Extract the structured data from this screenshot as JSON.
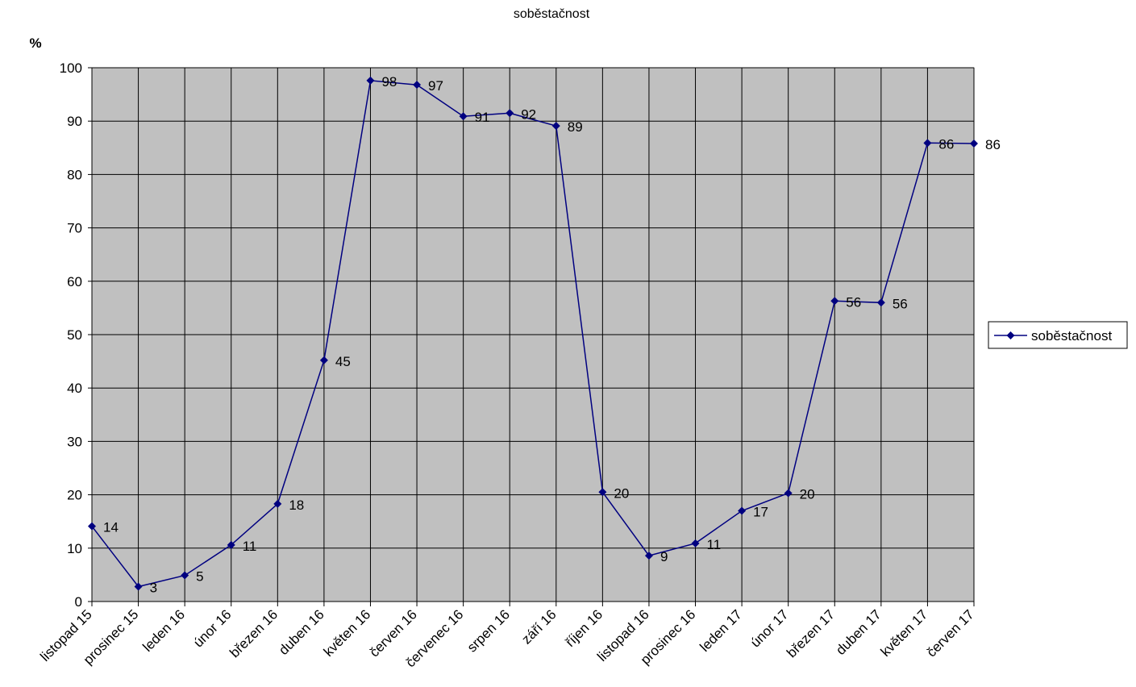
{
  "chart_data": {
    "type": "line",
    "title": "soběstačnost",
    "ylabel": "%",
    "xlabel": "",
    "ylim": [
      0,
      100
    ],
    "yticks": [
      0,
      10,
      20,
      30,
      40,
      50,
      60,
      70,
      80,
      90,
      100
    ],
    "grid": true,
    "legend_position": "right",
    "plot_background": "#c0c0c0",
    "series_color": "#000080",
    "categories": [
      "listopad 15",
      "prosinec 15",
      "leden 16",
      "únor 16",
      "březen 16",
      "duben 16",
      "květen 16",
      "červen 16",
      "červenec 16",
      "srpen 16",
      "září 16",
      "říjen 16",
      "listopad 16",
      "prosinec 16",
      "leden 17",
      "únor 17",
      "březen 17",
      "duben 17",
      "květen 17",
      "červen 17"
    ],
    "series": [
      {
        "name": "soběstačnost",
        "values": [
          14.1,
          2.8,
          4.9,
          10.6,
          18.3,
          45.2,
          97.6,
          96.8,
          90.9,
          91.5,
          89.1,
          20.5,
          8.6,
          10.9,
          17.0,
          20.3,
          56.3,
          56.0,
          85.9,
          85.8
        ],
        "labels": [
          "14",
          "3",
          "5",
          "11",
          "18",
          "45",
          "98",
          "97",
          "91",
          "92",
          "89",
          "20",
          "9",
          "11",
          "17",
          "20",
          "56",
          "56",
          "86",
          "86"
        ]
      }
    ]
  }
}
